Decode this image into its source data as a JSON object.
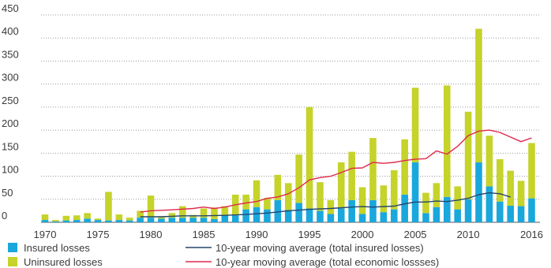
{
  "chart_data": {
    "type": "bar",
    "title": "",
    "xlabel": "",
    "ylabel": "",
    "ylim": [
      0,
      450
    ],
    "yticks": [
      0,
      50,
      100,
      150,
      200,
      250,
      300,
      350,
      400,
      450
    ],
    "xticks": [
      1970,
      1975,
      1980,
      1985,
      1990,
      1995,
      2000,
      2005,
      2010,
      2016
    ],
    "grid": "horizontal dotted",
    "legend_position": "bottom",
    "stacked": true,
    "years": [
      1970,
      1971,
      1972,
      1973,
      1974,
      1975,
      1976,
      1977,
      1978,
      1979,
      1980,
      1981,
      1982,
      1983,
      1984,
      1985,
      1986,
      1987,
      1988,
      1989,
      1990,
      1991,
      1992,
      1993,
      1994,
      1995,
      1996,
      1997,
      1998,
      1999,
      2000,
      2001,
      2002,
      2003,
      2004,
      2005,
      2006,
      2007,
      2008,
      2009,
      2010,
      2011,
      2012,
      2013,
      2014,
      2015,
      2016
    ],
    "series": [
      {
        "name": "Insured losses",
        "kind": "bar",
        "color": "#1aa7dc",
        "values": [
          5,
          2,
          4,
          5,
          8,
          5,
          4,
          5,
          4,
          10,
          10,
          8,
          10,
          10,
          10,
          10,
          7,
          15,
          15,
          28,
          33,
          28,
          48,
          27,
          42,
          30,
          25,
          18,
          30,
          48,
          18,
          48,
          22,
          28,
          60,
          130,
          20,
          33,
          55,
          28,
          50,
          130,
          78,
          45,
          36,
          35,
          52
        ]
      },
      {
        "name": "Uninsured losses",
        "kind": "bar",
        "color": "#c5d32a",
        "values": [
          12,
          3,
          10,
          10,
          12,
          3,
          62,
          12,
          6,
          15,
          48,
          5,
          10,
          25,
          6,
          20,
          25,
          20,
          45,
          32,
          58,
          25,
          55,
          58,
          105,
          220,
          62,
          30,
          100,
          105,
          58,
          135,
          58,
          85,
          120,
          162,
          44,
          52,
          242,
          50,
          190,
          290,
          110,
          92,
          76,
          55,
          120
        ]
      },
      {
        "name": "10-year moving average (total insured losses)",
        "kind": "line",
        "color": "#23446d",
        "x": [
          1979,
          1981,
          1983,
          1985,
          1987,
          1989,
          1991,
          1993,
          1995,
          1997,
          1999,
          2000,
          2001,
          2003,
          2004,
          2005,
          2006,
          2007,
          2008,
          2009,
          2010,
          2011,
          2012,
          2013,
          2014
        ],
        "values": [
          12,
          12,
          14,
          14,
          15,
          17,
          20,
          25,
          28,
          30,
          33,
          34,
          33,
          35,
          40,
          44,
          44,
          46,
          45,
          48,
          52,
          60,
          64,
          62,
          55
        ]
      },
      {
        "name": "10-year moving average (total economic lossses)",
        "kind": "line",
        "color": "#e0284d",
        "x": [
          1979,
          1980,
          1982,
          1984,
          1985,
          1986,
          1987,
          1988,
          1989,
          1990,
          1991,
          1992,
          1993,
          1994,
          1995,
          1996,
          1997,
          1998,
          1999,
          2000,
          2001,
          2002,
          2003,
          2004,
          2005,
          2006,
          2007,
          2008,
          2009,
          2010,
          2011,
          2012,
          2013,
          2014,
          2015,
          2016
        ],
        "values": [
          22,
          25,
          27,
          30,
          33,
          30,
          33,
          38,
          42,
          45,
          52,
          55,
          62,
          75,
          92,
          97,
          100,
          108,
          117,
          118,
          130,
          128,
          130,
          134,
          137,
          138,
          155,
          148,
          165,
          188,
          198,
          200,
          195,
          185,
          175,
          183
        ]
      }
    ]
  }
}
